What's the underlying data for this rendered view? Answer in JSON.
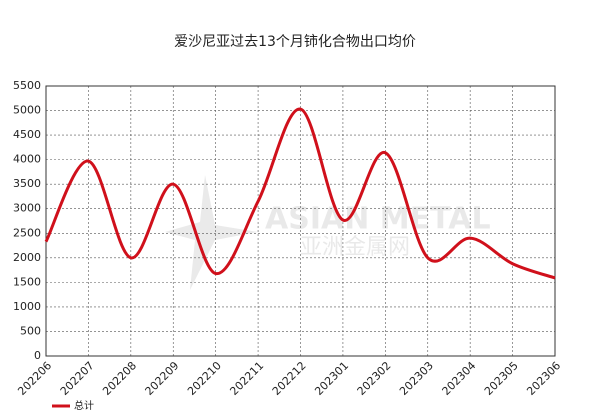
{
  "chart_data": {
    "type": "line",
    "title": "爱沙尼亚过去13个月铈化合物出口均价",
    "categories": [
      "202206",
      "202207",
      "202208",
      "202209",
      "202210",
      "202211",
      "202212",
      "202301",
      "202302",
      "202303",
      "202304",
      "202305",
      "202306"
    ],
    "series": [
      {
        "name": "总计",
        "color": "#d0101b",
        "values": [
          2330,
          3970,
          2000,
          3500,
          1680,
          3150,
          5030,
          2770,
          4140,
          2000,
          2400,
          1880,
          1590
        ]
      }
    ],
    "ylim": [
      0,
      5500
    ],
    "yticks": [
      0,
      500,
      1000,
      1500,
      2000,
      2500,
      3000,
      3500,
      4000,
      4500,
      5000,
      5500
    ],
    "grid": true,
    "legend": "bottom-left",
    "smooth": true,
    "watermark": [
      "ASIAN METAL",
      "亚洲金属网"
    ]
  }
}
